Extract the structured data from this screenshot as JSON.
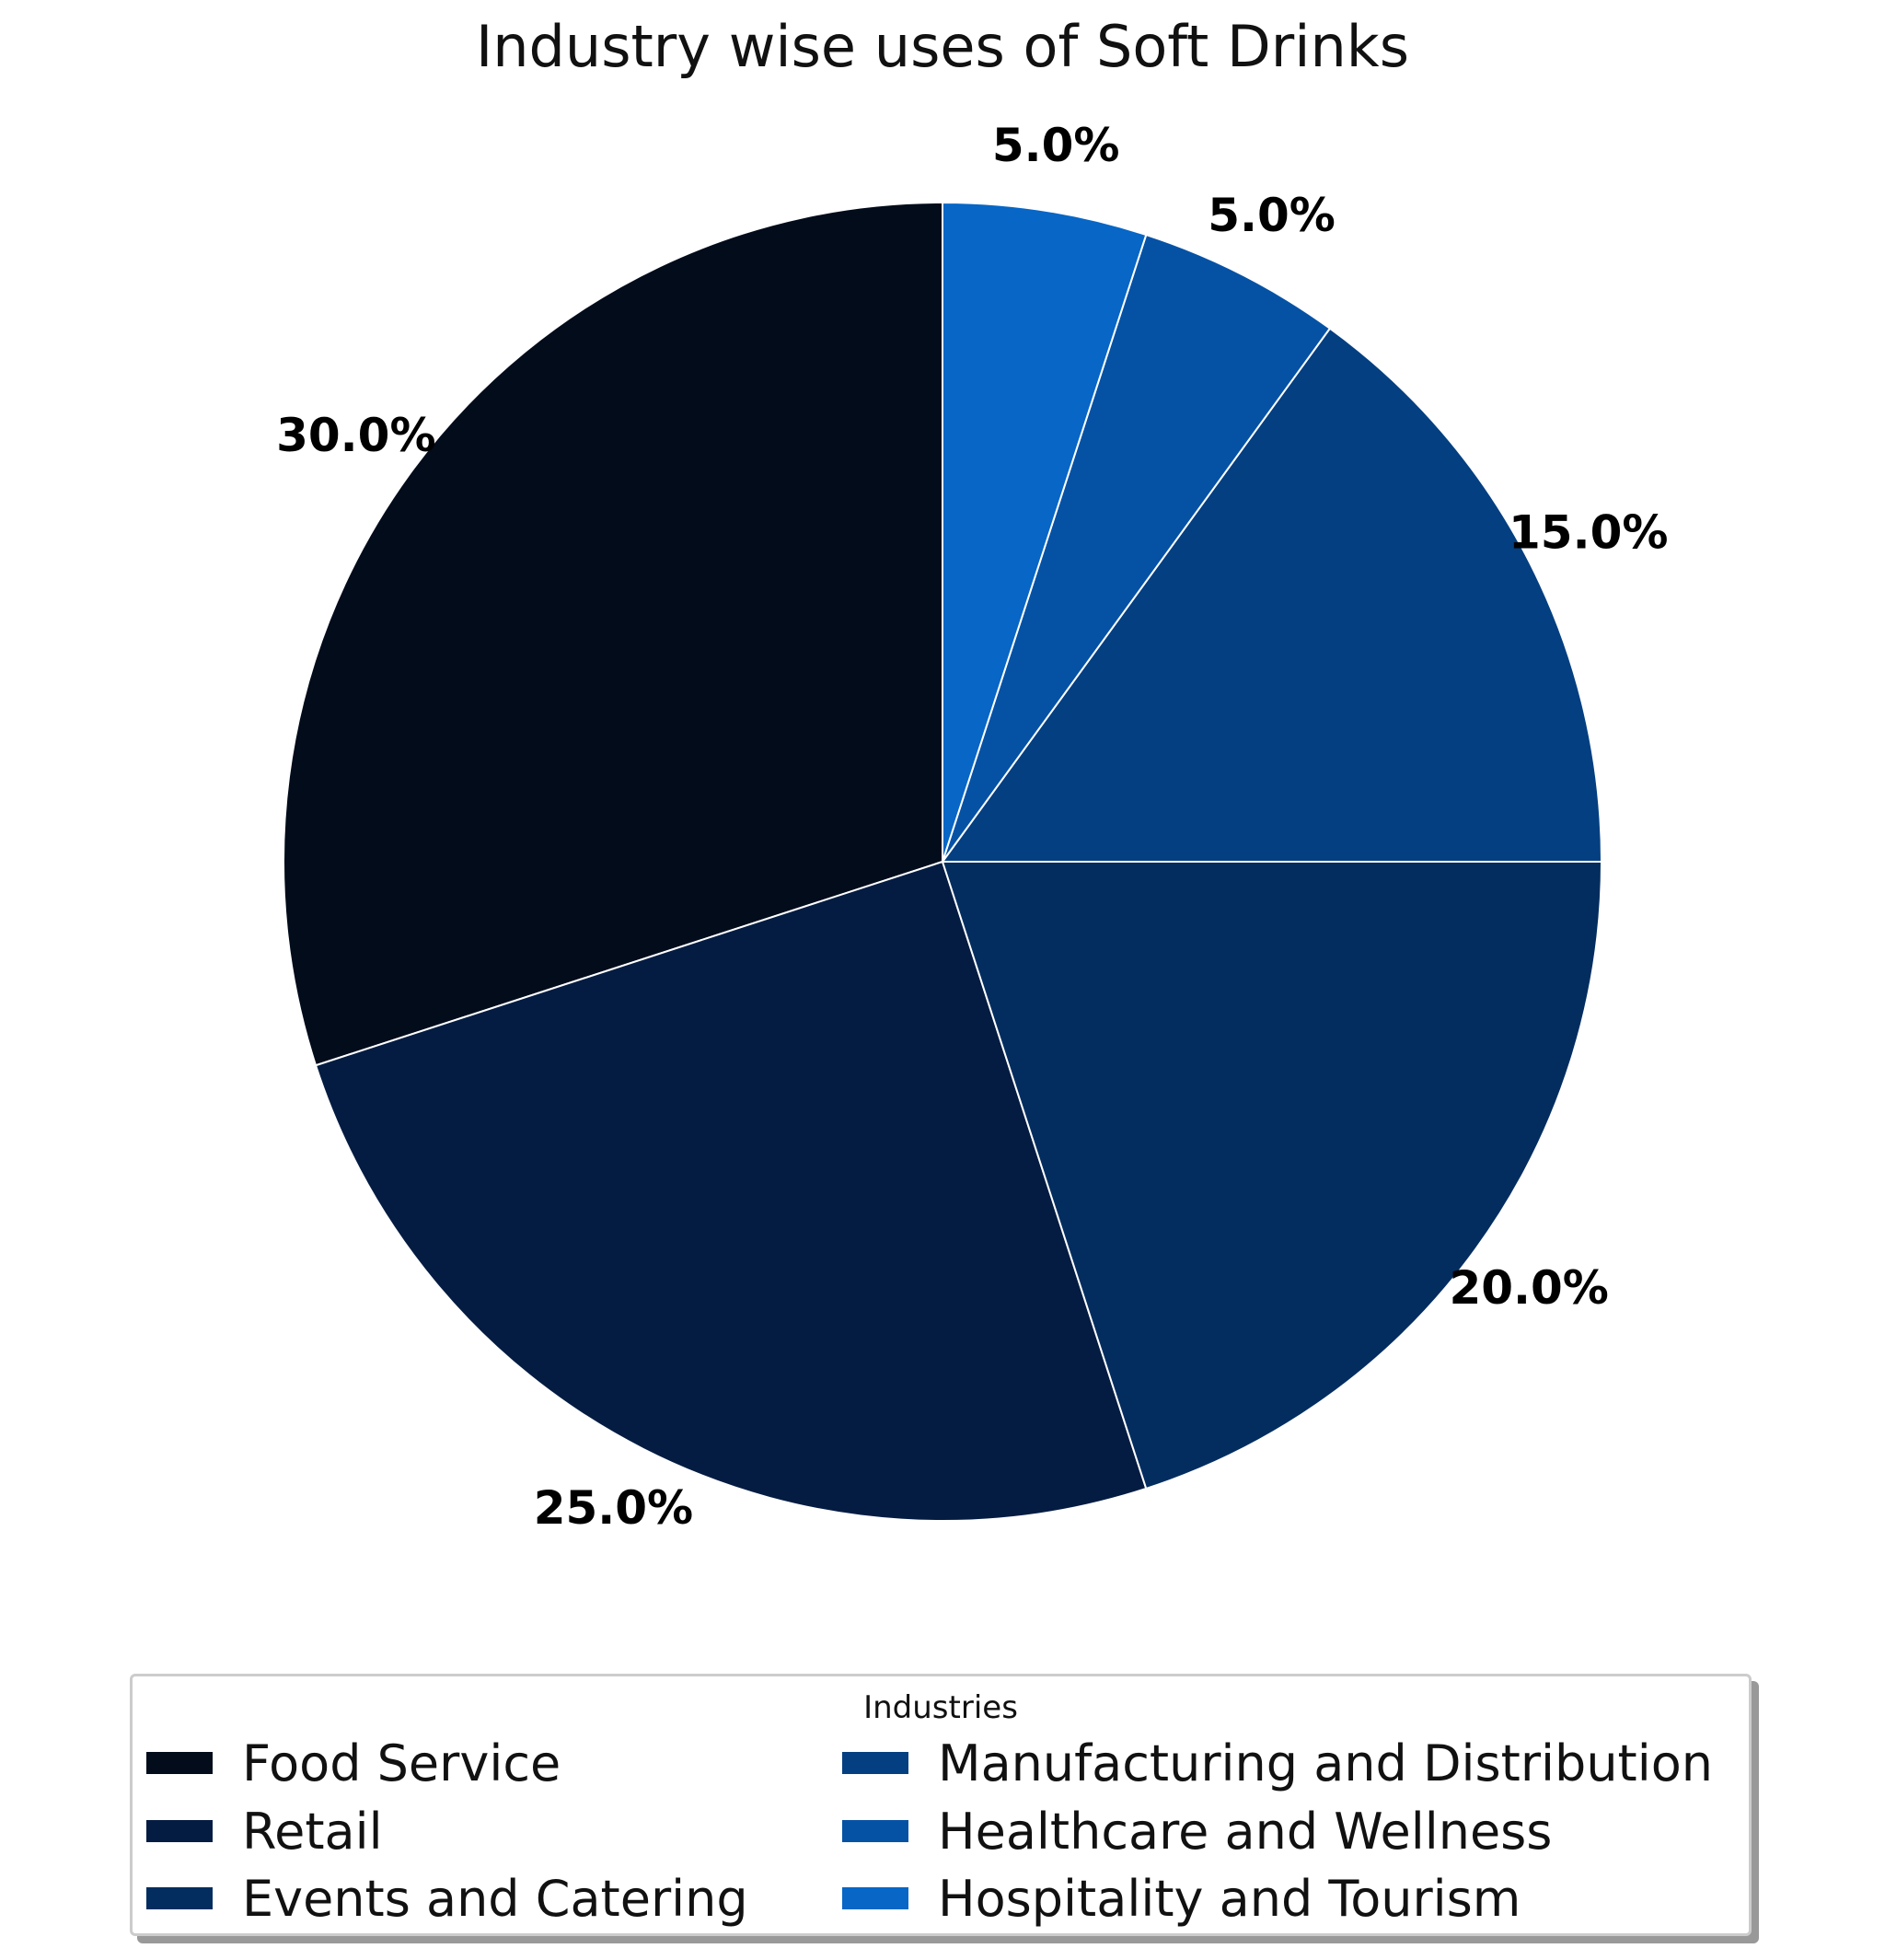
{
  "chart_data": {
    "type": "pie",
    "title": "Industry wise uses of Soft Drinks",
    "categories": [
      "Food Service",
      "Retail",
      "Events and Catering",
      "Manufacturing and Distribution",
      "Healthcare and Wellness",
      "Hospitality and Tourism"
    ],
    "values": [
      30,
      25,
      20,
      15,
      5,
      5
    ],
    "labels": [
      "30.0%",
      "25.0%",
      "20.0%",
      "15.0%",
      "5.0%",
      "5.0%"
    ],
    "colors": [
      "#020c1b",
      "#041c42",
      "#032d5f",
      "#033f81",
      "#0552a5",
      "#0766c6"
    ],
    "start_angle": "90° (top)",
    "direction": "counterclock",
    "legend": {
      "title": "Industries",
      "placement": "bottom-center",
      "columns": 2
    }
  }
}
